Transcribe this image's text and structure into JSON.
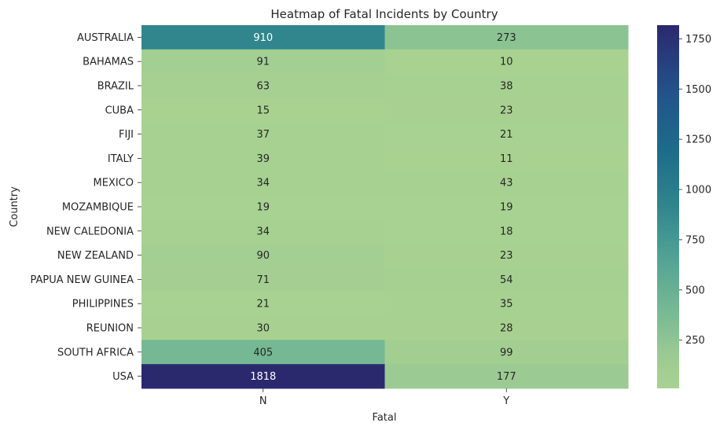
{
  "chart_data": {
    "type": "heatmap",
    "title": "Heatmap of Fatal Incidents by Country",
    "xlabel": "Fatal",
    "ylabel": "Country",
    "x_categories": [
      "N",
      "Y"
    ],
    "y_categories": [
      "AUSTRALIA",
      "BAHAMAS",
      "BRAZIL",
      "CUBA",
      "FIJI",
      "ITALY",
      "MEXICO",
      "MOZAMBIQUE",
      "NEW CALEDONIA",
      "NEW ZEALAND",
      "PAPUA NEW GUINEA",
      "PHILIPPINES",
      "REUNION",
      "SOUTH AFRICA",
      "USA"
    ],
    "values": [
      [
        910,
        273
      ],
      [
        91,
        10
      ],
      [
        63,
        38
      ],
      [
        15,
        23
      ],
      [
        37,
        21
      ],
      [
        39,
        11
      ],
      [
        34,
        43
      ],
      [
        19,
        19
      ],
      [
        34,
        18
      ],
      [
        90,
        23
      ],
      [
        71,
        54
      ],
      [
        21,
        35
      ],
      [
        30,
        28
      ],
      [
        405,
        99
      ],
      [
        1818,
        177
      ]
    ],
    "colorbar": {
      "colormap": "crest",
      "vmin": 10,
      "vmax": 1818,
      "ticks": [
        250,
        500,
        750,
        1000,
        1250,
        1500,
        1750
      ]
    },
    "grid": false,
    "legend": "colorbar right"
  }
}
